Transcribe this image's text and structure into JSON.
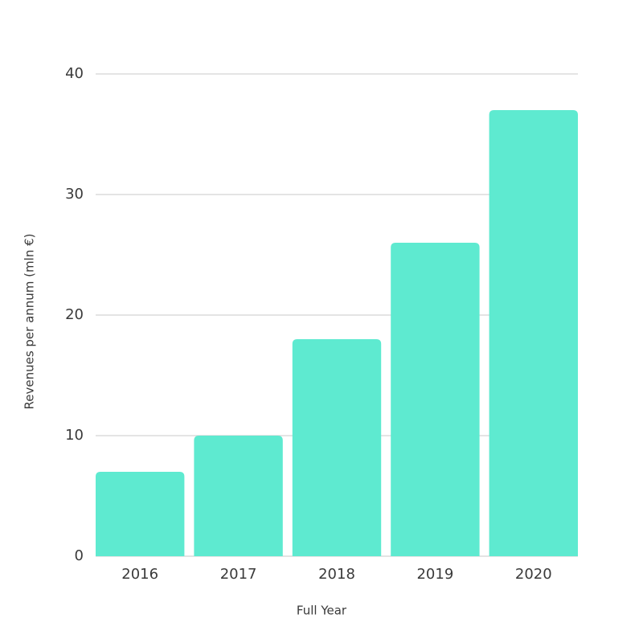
{
  "chart_data": {
    "type": "bar",
    "x_label": "Full Year",
    "y_label": "Revenues per annum (mln €)",
    "categories": [
      "2016",
      "2017",
      "2018",
      "2019",
      "2020"
    ],
    "values": [
      7,
      10,
      18,
      26,
      37
    ],
    "color": "#5eead0",
    "ylim": [
      0,
      40
    ],
    "yticks": [
      0,
      10,
      20,
      30,
      40
    ],
    "grid": true
  }
}
